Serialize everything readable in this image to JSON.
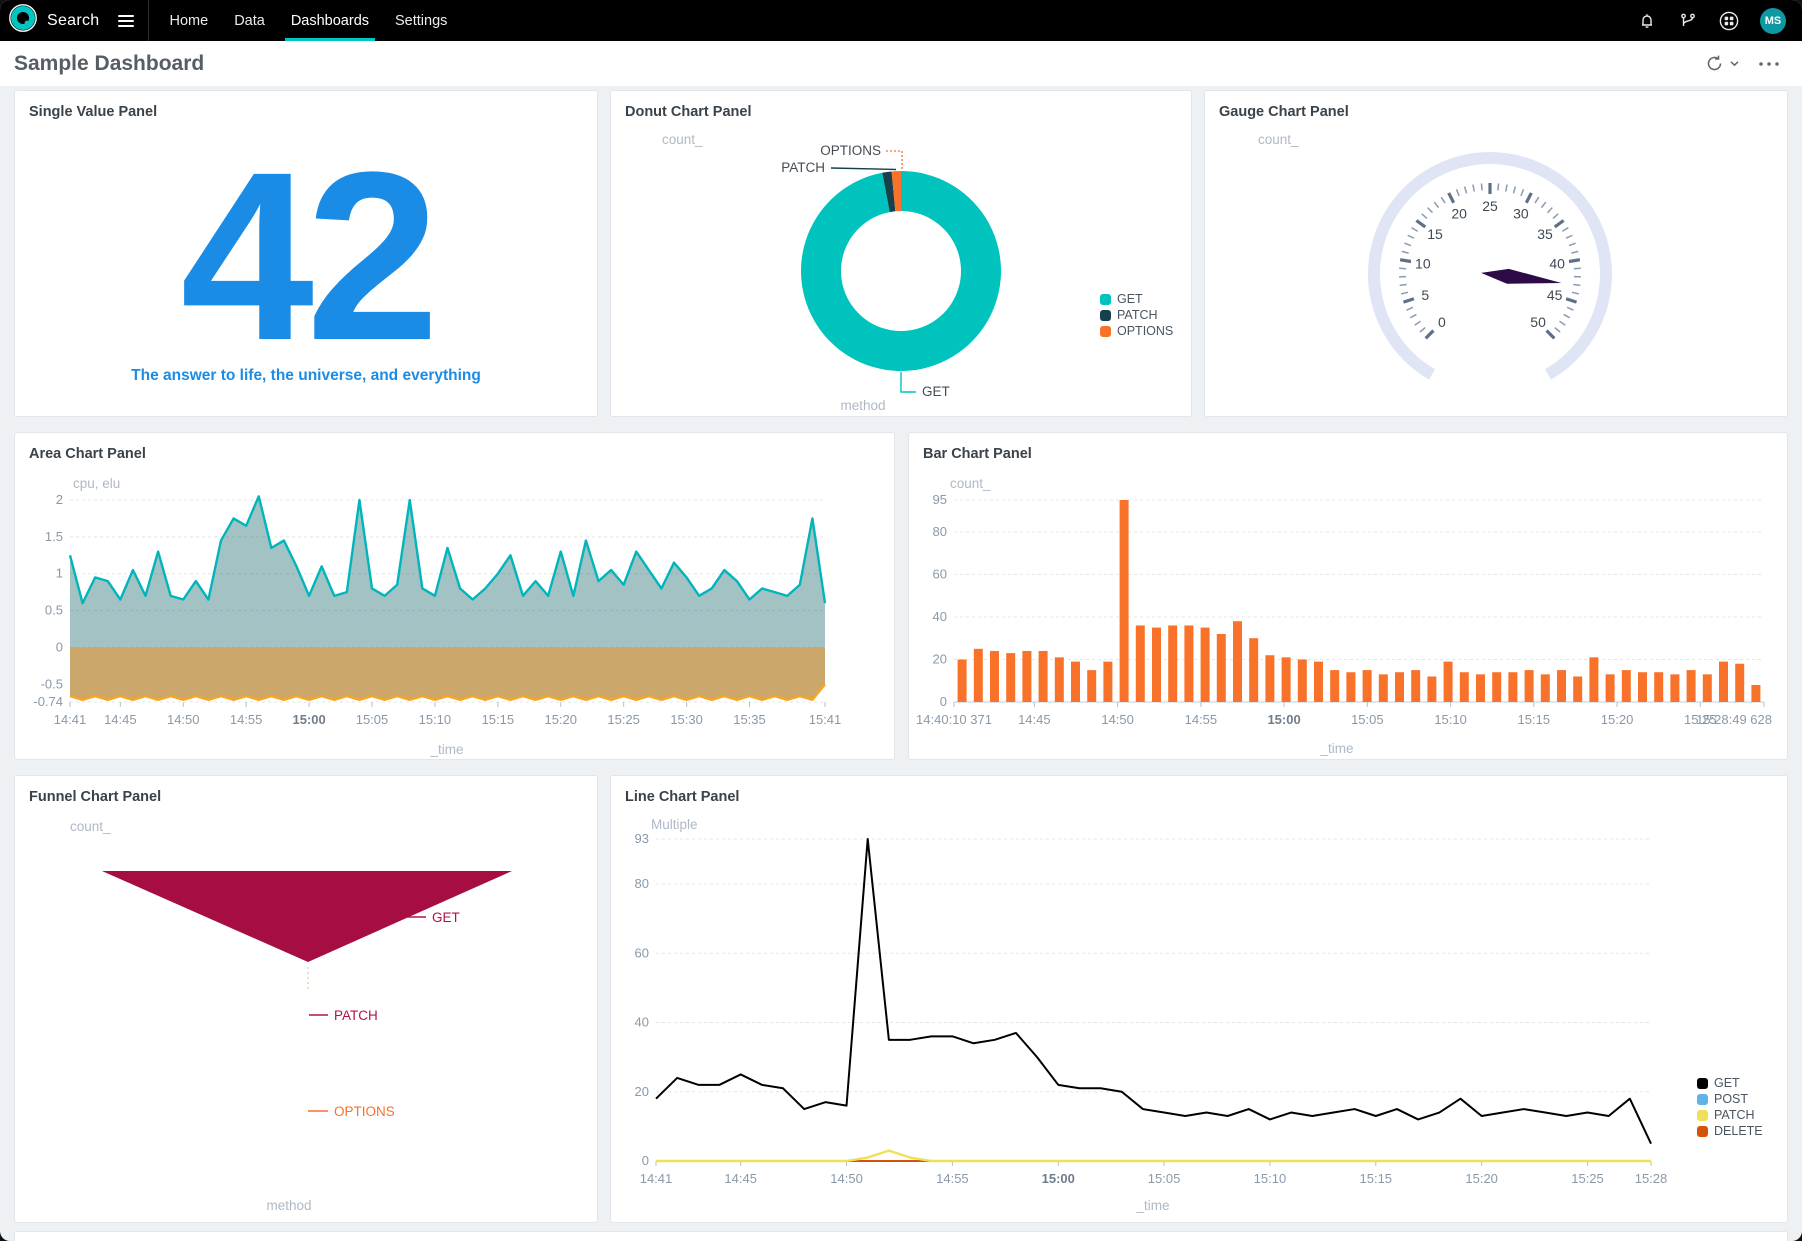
{
  "topbar": {
    "brand": "Search",
    "nav": [
      {
        "label": "Home",
        "active": false
      },
      {
        "label": "Data",
        "active": false
      },
      {
        "label": "Dashboards",
        "active": true
      },
      {
        "label": "Settings",
        "active": false
      }
    ],
    "icons": [
      "notifications-bell-icon",
      "pipeline-branch-icon",
      "apps-grid-icon"
    ],
    "avatar_initials": "MS",
    "accent_color": "#00c5c0"
  },
  "header": {
    "title": "Sample Dashboard",
    "actions": [
      "refresh-icon",
      "chevron-down-icon",
      "more-icon"
    ]
  },
  "chart_data": [
    {
      "type": "single_value",
      "panel": "Single Value Panel",
      "value": "42",
      "caption": "The answer to life, the universe, and everything",
      "value_color": "#1b8ce6"
    },
    {
      "type": "pie",
      "panel": "Donut Chart Panel",
      "ylabel": "count_",
      "xlabel": "method",
      "legend_position": "right",
      "series": [
        {
          "name": "GET",
          "pct": 97,
          "color": "#00c3be"
        },
        {
          "name": "PATCH",
          "pct": 1.5,
          "color": "#17404d"
        },
        {
          "name": "OPTIONS",
          "pct": 1.5,
          "color": "#f8722a"
        }
      ]
    },
    {
      "type": "gauge",
      "panel": "Gauge Chart Panel",
      "ylabel": "count_",
      "min": 0,
      "max": 50,
      "value": 43,
      "major_tick_step": 5,
      "minor_tick_step": 1,
      "major_labels": [
        "0",
        "5",
        "10",
        "15",
        "20",
        "25",
        "30",
        "35",
        "40",
        "45",
        "50"
      ],
      "needle_color": "#2c0b46",
      "arc_color": "#dfe5f4"
    },
    {
      "type": "area",
      "panel": "Area Chart Panel",
      "ylabel": "cpu, elu",
      "xlabel": "_time",
      "ylim": [
        -0.74,
        2
      ],
      "grid": true,
      "yticks": [
        {
          "label": "2",
          "v": 2
        },
        {
          "label": "1.5",
          "v": 1.5
        },
        {
          "label": "1",
          "v": 1
        },
        {
          "label": "0.5",
          "v": 0.5
        },
        {
          "label": "0",
          "v": 0
        },
        {
          "label": "-0.5",
          "v": -0.5
        },
        {
          "label": "-0.74",
          "v": -0.74
        }
      ],
      "xticks": [
        {
          "label": "14:41",
          "f": 0
        },
        {
          "label": "14:45",
          "f": 0.0667
        },
        {
          "label": "14:50",
          "f": 0.15
        },
        {
          "label": "14:55",
          "f": 0.2333
        },
        {
          "label": "15:00",
          "f": 0.3167,
          "bold": true
        },
        {
          "label": "15:05",
          "f": 0.4
        },
        {
          "label": "15:10",
          "f": 0.4833
        },
        {
          "label": "15:15",
          "f": 0.5667
        },
        {
          "label": "15:20",
          "f": 0.65
        },
        {
          "label": "15:25",
          "f": 0.7333
        },
        {
          "label": "15:30",
          "f": 0.8167
        },
        {
          "label": "15:35",
          "f": 0.9
        },
        {
          "label": "15:41",
          "f": 1
        }
      ],
      "series": [
        {
          "name": "cpu",
          "color": "#00b5bb",
          "fill": "rgba(35,110,112,0.42)",
          "values": [
            1.25,
            0.6,
            0.95,
            0.9,
            0.65,
            1.05,
            0.7,
            1.3,
            0.7,
            0.65,
            0.9,
            0.65,
            1.45,
            1.75,
            1.65,
            2.05,
            1.35,
            1.45,
            1.1,
            0.7,
            1.1,
            0.7,
            0.75,
            2.0,
            0.8,
            0.7,
            0.85,
            2.0,
            0.8,
            0.7,
            1.35,
            0.8,
            0.65,
            0.8,
            1.0,
            1.25,
            0.7,
            0.9,
            0.7,
            1.3,
            0.7,
            1.45,
            0.9,
            1.05,
            0.85,
            1.3,
            1.05,
            0.8,
            1.15,
            0.95,
            0.7,
            0.8,
            1.05,
            0.9,
            0.65,
            0.8,
            0.75,
            0.7,
            0.85,
            1.75,
            0.6
          ]
        },
        {
          "name": "elu",
          "color": "#f5a623",
          "fill": "rgba(199,159,94,0.92)",
          "values": [
            -0.66,
            -0.71,
            -0.66,
            -0.71,
            -0.66,
            -0.71,
            -0.66,
            -0.71,
            -0.66,
            -0.71,
            -0.66,
            -0.71,
            -0.66,
            -0.71,
            -0.66,
            -0.71,
            -0.66,
            -0.71,
            -0.66,
            -0.71,
            -0.66,
            -0.71,
            -0.66,
            -0.71,
            -0.66,
            -0.71,
            -0.66,
            -0.71,
            -0.66,
            -0.71,
            -0.66,
            -0.71,
            -0.66,
            -0.71,
            -0.66,
            -0.71,
            -0.66,
            -0.71,
            -0.66,
            -0.71,
            -0.66,
            -0.71,
            -0.66,
            -0.71,
            -0.66,
            -0.71,
            -0.66,
            -0.71,
            -0.66,
            -0.71,
            -0.66,
            -0.71,
            -0.66,
            -0.71,
            -0.66,
            -0.71,
            -0.66,
            -0.71,
            -0.66,
            -0.71,
            -0.5
          ]
        }
      ]
    },
    {
      "type": "bar",
      "panel": "Bar Chart Panel",
      "ylabel": "count_",
      "xlabel": "_time",
      "color": "#f8722a",
      "ylim": [
        0,
        95
      ],
      "grid": true,
      "yticks": [
        {
          "label": "0",
          "v": 0
        },
        {
          "label": "20",
          "v": 20
        },
        {
          "label": "40",
          "v": 40
        },
        {
          "label": "60",
          "v": 60
        },
        {
          "label": "80",
          "v": 80
        },
        {
          "label": "95",
          "v": 95
        }
      ],
      "xticks": [
        {
          "label": "14:40:10 371",
          "f": 0
        },
        {
          "label": "14:45",
          "f": 0.0992
        },
        {
          "label": "14:50",
          "f": 0.202
        },
        {
          "label": "14:55",
          "f": 0.3048
        },
        {
          "label": "15:00",
          "f": 0.4075,
          "bold": true
        },
        {
          "label": "15:05",
          "f": 0.5103
        },
        {
          "label": "15:10",
          "f": 0.6131
        },
        {
          "label": "15:15",
          "f": 0.7158
        },
        {
          "label": "15:20",
          "f": 0.8186
        },
        {
          "label": "15:25",
          "f": 0.9213
        },
        {
          "label": "15:28:49 628",
          "f": 1
        }
      ],
      "values": [
        20,
        25,
        24,
        23,
        24,
        24,
        21,
        19,
        15,
        19,
        95,
        36,
        35,
        36,
        36,
        35,
        32,
        38,
        30,
        22,
        21,
        20,
        19,
        15,
        14,
        15,
        13,
        14,
        15,
        12,
        19,
        14,
        13,
        14,
        14,
        15,
        13,
        15,
        12,
        21,
        13,
        15,
        14,
        14,
        13,
        15,
        13,
        19,
        18,
        8
      ]
    },
    {
      "type": "funnel",
      "panel": "Funnel Chart Panel",
      "ylabel": "count_",
      "xlabel": "method",
      "segments": [
        {
          "name": "GET",
          "value": 97,
          "color": "#a50d43",
          "label_color": "#b31246"
        },
        {
          "name": "PATCH",
          "value": 2,
          "color": "#17404d",
          "label_color": "#b31246"
        },
        {
          "name": "OPTIONS",
          "value": 1,
          "color": "#f8722a",
          "label_color": "#f8722a"
        }
      ]
    },
    {
      "type": "line",
      "panel": "Line Chart Panel",
      "ylabel": "Multiple",
      "xlabel": "_time",
      "ylim": [
        0,
        93
      ],
      "grid": true,
      "legend_position": "right",
      "yticks": [
        {
          "label": "0",
          "v": 0
        },
        {
          "label": "20",
          "v": 20
        },
        {
          "label": "40",
          "v": 40
        },
        {
          "label": "60",
          "v": 60
        },
        {
          "label": "80",
          "v": 80
        },
        {
          "label": "93",
          "v": 93
        }
      ],
      "xticks": [
        {
          "label": "14:41",
          "f": 0
        },
        {
          "label": "14:45",
          "f": 0.0851
        },
        {
          "label": "14:50",
          "f": 0.1915
        },
        {
          "label": "14:55",
          "f": 0.2979
        },
        {
          "label": "15:00",
          "f": 0.4043,
          "bold": true
        },
        {
          "label": "15:05",
          "f": 0.5106
        },
        {
          "label": "15:10",
          "f": 0.617
        },
        {
          "label": "15:15",
          "f": 0.7234
        },
        {
          "label": "15:20",
          "f": 0.8298
        },
        {
          "label": "15:25",
          "f": 0.9362
        },
        {
          "label": "15:28",
          "f": 1
        }
      ],
      "series": [
        {
          "name": "GET",
          "color": "#000000",
          "values": [
            18,
            24,
            22,
            22,
            25,
            22,
            21,
            15,
            17,
            16,
            93,
            35,
            35,
            36,
            36,
            34,
            35,
            37,
            30,
            22,
            21,
            21,
            20,
            15,
            14,
            13,
            14,
            13,
            15,
            12,
            14,
            13,
            14,
            15,
            13,
            15,
            12,
            14,
            18,
            13,
            14,
            15,
            14,
            13,
            14,
            13,
            18,
            5
          ]
        },
        {
          "name": "POST",
          "color": "#62b3e5",
          "values": [
            0,
            0,
            0,
            0,
            0,
            0,
            0,
            0,
            0,
            0,
            0,
            0,
            0,
            0,
            0,
            0,
            0,
            0,
            0,
            0,
            0,
            0,
            0,
            0,
            0,
            0,
            0,
            0,
            0,
            0,
            0,
            0,
            0,
            0,
            0,
            0,
            0,
            0,
            0,
            0,
            0,
            0,
            0,
            0,
            0,
            0,
            0,
            0
          ]
        },
        {
          "name": "PATCH",
          "color": "#f0df59",
          "values": [
            0,
            0,
            0,
            0,
            0,
            0,
            0,
            0,
            0,
            0,
            1,
            3,
            1,
            0,
            0,
            0,
            0,
            0,
            0,
            0,
            0,
            0,
            0,
            0,
            0,
            0,
            0,
            0,
            0,
            0,
            0,
            0,
            0,
            0,
            0,
            0,
            0,
            0,
            0,
            0,
            0,
            0,
            0,
            0,
            0,
            0,
            0,
            0
          ]
        },
        {
          "name": "DELETE",
          "color": "#d4540a",
          "values": [
            0,
            0,
            0,
            0,
            0,
            0,
            0,
            0,
            0,
            0,
            0,
            0,
            0,
            0,
            0,
            0,
            0,
            0,
            0,
            0,
            0,
            0,
            0,
            0,
            0,
            0,
            0,
            0,
            0,
            0,
            0,
            0,
            0,
            0,
            0,
            0,
            0,
            0,
            0,
            0,
            0,
            0,
            0,
            0,
            0,
            0,
            0,
            0
          ]
        }
      ]
    }
  ]
}
